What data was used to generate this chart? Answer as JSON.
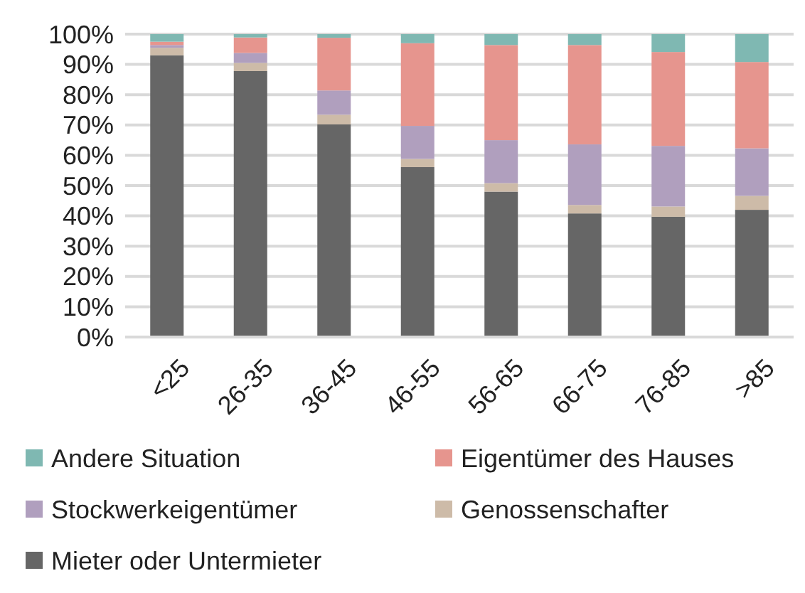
{
  "chart_data": {
    "type": "bar",
    "stacked": true,
    "categories": [
      "<25",
      "26-35",
      "36-45",
      "46-55",
      "56-65",
      "66-75",
      "76-85",
      ">85"
    ],
    "series": [
      {
        "name": "Mieter oder Untermieter",
        "color": "#666666",
        "values": [
          93.0,
          87.8,
          70.2,
          56.1,
          48.0,
          40.8,
          39.7,
          42.0
        ]
      },
      {
        "name": "Genossenschafter",
        "color": "#cdbba8",
        "values": [
          2.5,
          2.7,
          3.2,
          2.7,
          2.8,
          2.8,
          3.4,
          4.6
        ]
      },
      {
        "name": "Stockwerkeigentümer",
        "color": "#b09fbe",
        "values": [
          0.9,
          3.3,
          8.0,
          10.9,
          14.2,
          20.0,
          20.0,
          15.7
        ]
      },
      {
        "name": "Eigentümer des Hauses",
        "color": "#e6958e",
        "values": [
          1.1,
          5.1,
          17.4,
          27.3,
          31.4,
          32.8,
          31.0,
          28.5
        ]
      },
      {
        "name": "Andere Situation",
        "color": "#7fb8b2",
        "values": [
          2.5,
          1.1,
          1.2,
          3.0,
          3.6,
          3.6,
          5.9,
          9.2
        ]
      }
    ],
    "ylim": [
      0,
      100
    ],
    "yticks": [
      {
        "value": 0,
        "label": "0%"
      },
      {
        "value": 10,
        "label": "10%"
      },
      {
        "value": 20,
        "label": "20%"
      },
      {
        "value": 30,
        "label": "30%"
      },
      {
        "value": 40,
        "label": "40%"
      },
      {
        "value": 50,
        "label": "50%"
      },
      {
        "value": 60,
        "label": "60%"
      },
      {
        "value": 70,
        "label": "70%"
      },
      {
        "value": 80,
        "label": "80%"
      },
      {
        "value": 90,
        "label": "90%"
      },
      {
        "value": 100,
        "label": "100%"
      }
    ],
    "grid": "y",
    "legend": "bottom"
  }
}
